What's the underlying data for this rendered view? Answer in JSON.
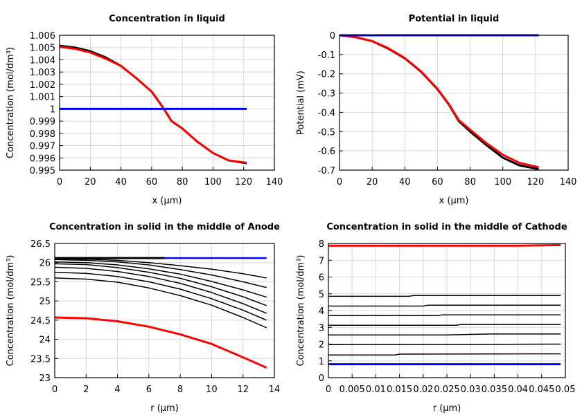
{
  "chart_data": [
    {
      "type": "line",
      "title": "Concentration in liquid",
      "xlabel": "x (µm)",
      "ylabel": "Concentration (mol/dm³)",
      "xlim": [
        0,
        140
      ],
      "ylim": [
        0.995,
        1.006
      ],
      "grid": true,
      "xticks": [
        "0",
        "20",
        "40",
        "60",
        "80",
        "100",
        "120",
        "140"
      ],
      "yticks": [
        "0.995",
        "0.996",
        "0.997",
        "0.998",
        "0.999",
        "1",
        "1.001",
        "1.002",
        "1.003",
        "1.004",
        "1.005",
        "1.006"
      ],
      "series": [
        {
          "color": "#000000",
          "width": 3,
          "x": [
            0,
            10,
            20,
            30,
            40,
            50,
            60,
            68,
            73,
            80,
            90,
            100,
            110,
            122
          ],
          "y": [
            1.00515,
            1.005,
            1.0047,
            1.0042,
            1.0035,
            1.0025,
            1.0014,
            1.0,
            0.999,
            0.9984,
            0.9973,
            0.9964,
            0.9958,
            0.99555
          ]
        },
        {
          "color": "#ff0000",
          "width": 3,
          "x": [
            0,
            10,
            20,
            30,
            40,
            50,
            60,
            68,
            73,
            80,
            90,
            100,
            110,
            122
          ],
          "y": [
            1.00505,
            1.0049,
            1.0046,
            1.0041,
            1.0035,
            1.0025,
            1.0014,
            1.0,
            0.999,
            0.9984,
            0.9973,
            0.9964,
            0.9958,
            0.9956
          ]
        },
        {
          "color": "#0000ff",
          "width": 3,
          "x": [
            0,
            122
          ],
          "y": [
            1.0,
            1.0
          ]
        }
      ]
    },
    {
      "type": "line",
      "title": "Potential in liquid",
      "xlabel": "x (µm)",
      "ylabel": "Potential (mV)",
      "xlim": [
        0,
        140
      ],
      "ylim": [
        -0.7,
        0
      ],
      "grid": true,
      "xticks": [
        "0",
        "20",
        "40",
        "60",
        "80",
        "100",
        "120",
        "140"
      ],
      "yticks": [
        "-0.7",
        "-0.6",
        "-0.5",
        "-0.4",
        "-0.3",
        "-0.2",
        "-0.1",
        "0"
      ],
      "series": [
        {
          "color": "#000000",
          "width": 3,
          "x": [
            0,
            10,
            20,
            30,
            40,
            50,
            60,
            67,
            73,
            80,
            90,
            100,
            110,
            122
          ],
          "y": [
            0,
            -0.01,
            -0.03,
            -0.07,
            -0.12,
            -0.19,
            -0.28,
            -0.36,
            -0.445,
            -0.5,
            -0.57,
            -0.635,
            -0.675,
            -0.695
          ]
        },
        {
          "color": "#ff0000",
          "width": 3,
          "x": [
            0,
            10,
            20,
            30,
            40,
            50,
            60,
            67,
            73,
            80,
            90,
            100,
            110,
            122
          ],
          "y": [
            0,
            -0.01,
            -0.03,
            -0.068,
            -0.118,
            -0.188,
            -0.278,
            -0.358,
            -0.44,
            -0.49,
            -0.56,
            -0.62,
            -0.662,
            -0.685
          ]
        },
        {
          "color": "#0000ff",
          "width": 3,
          "x": [
            0,
            122
          ],
          "y": [
            0,
            0
          ]
        }
      ]
    },
    {
      "type": "line",
      "title": "Concentration in solid in the middle of Anode",
      "xlabel": "r (µm)",
      "ylabel": "Concentration (mol/dm³)",
      "xlim": [
        0,
        14
      ],
      "ylim": [
        23,
        26.5
      ],
      "grid": true,
      "xticks": [
        "0",
        "2",
        "4",
        "6",
        "8",
        "10",
        "12",
        "14"
      ],
      "yticks": [
        "23",
        "23.5",
        "24",
        "24.5",
        "25",
        "25.5",
        "26",
        "26.5"
      ],
      "series": [
        {
          "color": "#0000ff",
          "width": 2.5,
          "x": [
            0,
            13.5
          ],
          "y": [
            26.12,
            26.12
          ]
        },
        {
          "color": "#000000",
          "width": 3,
          "x": [
            0,
            7
          ],
          "y": [
            26.12,
            26.12
          ]
        },
        {
          "color": "#000000",
          "width": 1.5,
          "x": [
            0,
            2,
            4,
            6,
            8,
            10,
            12,
            13.5
          ],
          "y": [
            26.1,
            26.09,
            26.06,
            26.0,
            25.92,
            25.83,
            25.71,
            25.6
          ]
        },
        {
          "color": "#000000",
          "width": 1.5,
          "x": [
            0,
            2,
            4,
            6,
            8,
            10,
            12,
            13.5
          ],
          "y": [
            26.08,
            26.06,
            26.02,
            25.94,
            25.82,
            25.68,
            25.5,
            25.35
          ]
        },
        {
          "color": "#000000",
          "width": 1.5,
          "x": [
            0,
            2,
            4,
            6,
            8,
            10,
            12,
            13.5
          ],
          "y": [
            26.02,
            26.0,
            25.94,
            25.84,
            25.7,
            25.51,
            25.29,
            25.1
          ]
        },
        {
          "color": "#000000",
          "width": 1.5,
          "x": [
            0,
            2,
            4,
            6,
            8,
            10,
            12,
            13.5
          ],
          "y": [
            25.97,
            25.95,
            25.87,
            25.75,
            25.59,
            25.37,
            25.11,
            24.88
          ]
        },
        {
          "color": "#000000",
          "width": 1.5,
          "x": [
            0,
            2,
            4,
            6,
            8,
            10,
            12,
            13.5
          ],
          "y": [
            25.88,
            25.85,
            25.77,
            25.64,
            25.46,
            25.22,
            24.93,
            24.68
          ]
        },
        {
          "color": "#000000",
          "width": 1.5,
          "x": [
            0,
            2,
            4,
            6,
            8,
            10,
            12,
            13.5
          ],
          "y": [
            25.75,
            25.72,
            25.64,
            25.5,
            25.31,
            25.06,
            24.76,
            24.5
          ]
        },
        {
          "color": "#000000",
          "width": 1.5,
          "x": [
            0,
            2,
            4,
            6,
            8,
            10,
            12,
            13.5
          ],
          "y": [
            25.6,
            25.57,
            25.49,
            25.34,
            25.14,
            24.89,
            24.57,
            24.3
          ]
        },
        {
          "color": "#ff0000",
          "width": 3,
          "x": [
            0,
            2,
            4,
            6,
            8,
            10,
            12,
            13.5
          ],
          "y": [
            24.57,
            24.55,
            24.47,
            24.33,
            24.13,
            23.88,
            23.53,
            23.26
          ]
        }
      ]
    },
    {
      "type": "line",
      "title": "Concentration in solid in the middle of Cathode",
      "xlabel": "r (µm)",
      "ylabel": "Concentration (mol/dm³)",
      "xlim": [
        0,
        0.05
      ],
      "ylim": [
        0,
        8
      ],
      "grid": true,
      "xticks": [
        "0",
        "0.005",
        "0.01",
        "0.015",
        "0.02",
        "0.025",
        "0.03",
        "0.035",
        "0.04",
        "0.045",
        "0.05"
      ],
      "yticks": [
        "0",
        "1",
        "2",
        "3",
        "4",
        "5",
        "6",
        "7",
        "8"
      ],
      "series": [
        {
          "color": "#ff0000",
          "width": 3,
          "x": [
            0,
            0.04,
            0.049
          ],
          "y": [
            7.87,
            7.87,
            7.9
          ]
        },
        {
          "color": "#000000",
          "width": 1.5,
          "x": [
            0,
            0.017,
            0.018,
            0.049
          ],
          "y": [
            4.85,
            4.85,
            4.9,
            4.9
          ]
        },
        {
          "color": "#000000",
          "width": 1.5,
          "x": [
            0,
            0.02,
            0.021,
            0.049
          ],
          "y": [
            4.27,
            4.27,
            4.32,
            4.32
          ]
        },
        {
          "color": "#000000",
          "width": 1.5,
          "x": [
            0,
            0.023,
            0.024,
            0.049
          ],
          "y": [
            3.7,
            3.7,
            3.74,
            3.74
          ]
        },
        {
          "color": "#000000",
          "width": 1.5,
          "x": [
            0,
            0.027,
            0.028,
            0.049
          ],
          "y": [
            3.12,
            3.12,
            3.17,
            3.17
          ]
        },
        {
          "color": "#000000",
          "width": 1.5,
          "x": [
            0,
            0.025,
            0.034,
            0.049
          ],
          "y": [
            2.55,
            2.55,
            2.6,
            2.6
          ]
        },
        {
          "color": "#000000",
          "width": 1.5,
          "x": [
            0,
            0.0003,
            0.03,
            0.049
          ],
          "y": [
            2.02,
            1.97,
            1.98,
            2.0
          ]
        },
        {
          "color": "#000000",
          "width": 1.5,
          "x": [
            0,
            0.014,
            0.015,
            0.049
          ],
          "y": [
            1.35,
            1.35,
            1.4,
            1.42
          ]
        },
        {
          "color": "#0000ff",
          "width": 3,
          "x": [
            0,
            0.049
          ],
          "y": [
            0.8,
            0.8
          ]
        }
      ]
    }
  ]
}
